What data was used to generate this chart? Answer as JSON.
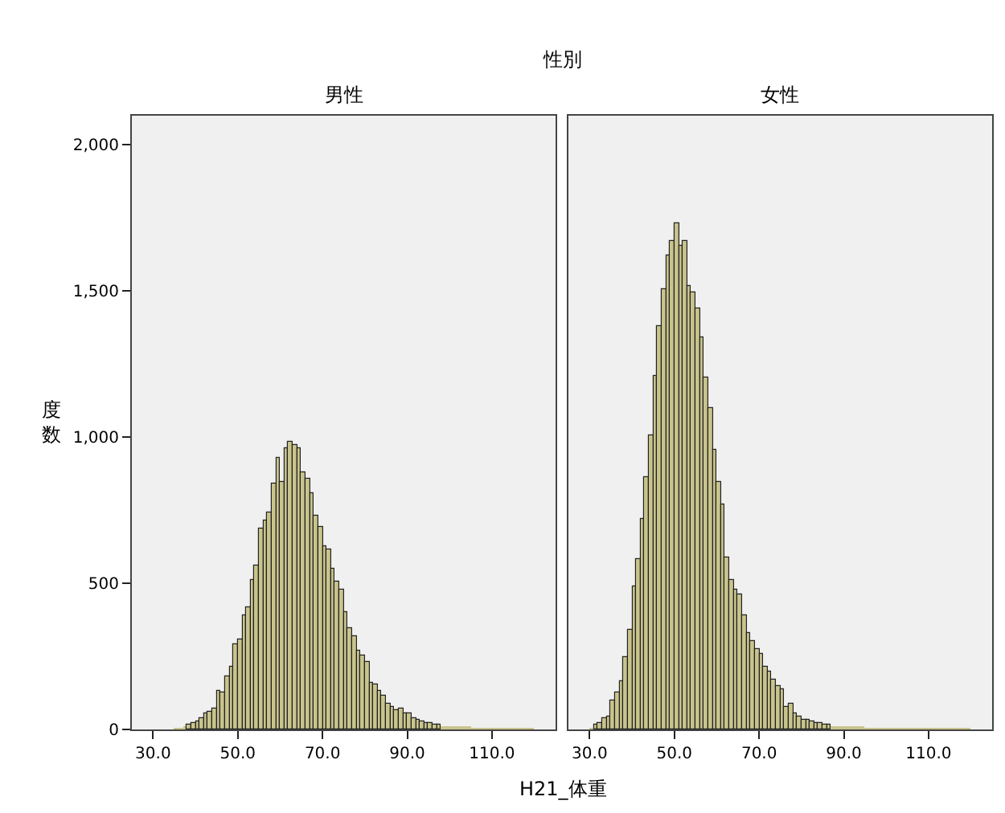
{
  "chart_data": [
    {
      "type": "histogram",
      "title": "男性",
      "annotations": [
        "性別"
      ],
      "xlabel": "H21_体重",
      "ylabel": "度数",
      "color": "#c9c48c",
      "bins": [
        35,
        36,
        37,
        38,
        39,
        40,
        41,
        42,
        43,
        44,
        45,
        46,
        47,
        48,
        49,
        50,
        51,
        52,
        53,
        54,
        55,
        56,
        57,
        58,
        59,
        60,
        61,
        62,
        63,
        64,
        65,
        66,
        67,
        68,
        69,
        70,
        71,
        72,
        73,
        74,
        75,
        76,
        77,
        78,
        79,
        80,
        81,
        82,
        83,
        84,
        85,
        86,
        87,
        88,
        89,
        90,
        91,
        92,
        93,
        94,
        95,
        96,
        97,
        98,
        99,
        100,
        101,
        102,
        103,
        104,
        105,
        106,
        107,
        108,
        109,
        110,
        111,
        112,
        113,
        114,
        115,
        116,
        117,
        118,
        119,
        120
      ],
      "values": [
        2,
        5,
        13,
        17,
        20,
        28,
        40,
        54,
        59,
        74,
        133,
        124,
        180,
        216,
        290,
        309,
        392,
        420,
        512,
        559,
        688,
        712,
        744,
        842,
        929,
        845,
        961,
        983,
        971,
        961,
        882,
        860,
        808,
        731,
        694,
        627,
        614,
        549,
        505,
        481,
        401,
        346,
        318,
        272,
        253,
        231,
        157,
        152,
        133,
        115,
        87,
        78,
        68,
        70,
        54,
        54,
        40,
        31,
        28,
        24,
        22,
        18,
        17,
        13,
        9,
        7,
        11,
        7,
        13,
        7,
        5,
        4,
        3,
        3,
        2,
        2,
        2,
        1,
        1,
        1,
        1,
        1,
        1,
        1,
        1
      ],
      "xlim": [
        25,
        125
      ],
      "ylim": [
        0,
        2100
      ],
      "xticks": [
        {
          "value": 30,
          "label": "30.0"
        },
        {
          "value": 50,
          "label": "50.0"
        },
        {
          "value": 70,
          "label": "70.0"
        },
        {
          "value": 90,
          "label": "90.0"
        },
        {
          "value": 110,
          "label": "110.0"
        }
      ],
      "yticks": [
        0,
        500,
        {
          "value": 1000,
          "label": "1,000"
        },
        {
          "value": 1500,
          "label": "1,500"
        },
        {
          "value": 2000,
          "label": "2,000"
        }
      ],
      "grid": false
    },
    {
      "type": "histogram",
      "title": "女性",
      "color": "#c9c48c",
      "bins": [
        30,
        31,
        32,
        33,
        34,
        35,
        36,
        37,
        38,
        39,
        40,
        41,
        42,
        43,
        44,
        45,
        46,
        47,
        48,
        49,
        50,
        51,
        52,
        53,
        54,
        55,
        56,
        57,
        58,
        59,
        60,
        61,
        62,
        63,
        64,
        65,
        66,
        67,
        68,
        69,
        70,
        71,
        72,
        73,
        74,
        75,
        76,
        77,
        78,
        79,
        80,
        81,
        82,
        83,
        84,
        85,
        86,
        87,
        88,
        89,
        90,
        91,
        92,
        93,
        94,
        95,
        96,
        97,
        98,
        99,
        100,
        101,
        102,
        103,
        104,
        105,
        106,
        107,
        108,
        109,
        110,
        111,
        112,
        113,
        114,
        115,
        116,
        117,
        118,
        119,
        120
      ],
      "values": [
        3,
        17,
        22,
        39,
        44,
        99,
        127,
        164,
        247,
        339,
        491,
        583,
        720,
        863,
        1006,
        1209,
        1382,
        1507,
        1621,
        1673,
        1731,
        1654,
        1669,
        1516,
        1498,
        1443,
        1341,
        1203,
        1102,
        955,
        845,
        771,
        587,
        514,
        477,
        464,
        388,
        330,
        302,
        274,
        260,
        215,
        197,
        173,
        149,
        136,
        75,
        86,
        53,
        44,
        31,
        35,
        26,
        22,
        20,
        17,
        15,
        13,
        11,
        13,
        12,
        10,
        8,
        7,
        6,
        5,
        4,
        4,
        3,
        3,
        3,
        2,
        2,
        2,
        2,
        1,
        1,
        1,
        1,
        1,
        1,
        1,
        1,
        1,
        1,
        1,
        1,
        1,
        1,
        1
      ],
      "xlim": [
        25,
        125
      ],
      "ylim": [
        0,
        2100
      ],
      "xticks": [
        {
          "value": 30,
          "label": "30.0"
        },
        {
          "value": 50,
          "label": "50.0"
        },
        {
          "value": 70,
          "label": "70.0"
        },
        {
          "value": 90,
          "label": "90.0"
        },
        {
          "value": 110,
          "label": "110.0"
        }
      ],
      "tick_labels": "x",
      "grid": false
    }
  ]
}
